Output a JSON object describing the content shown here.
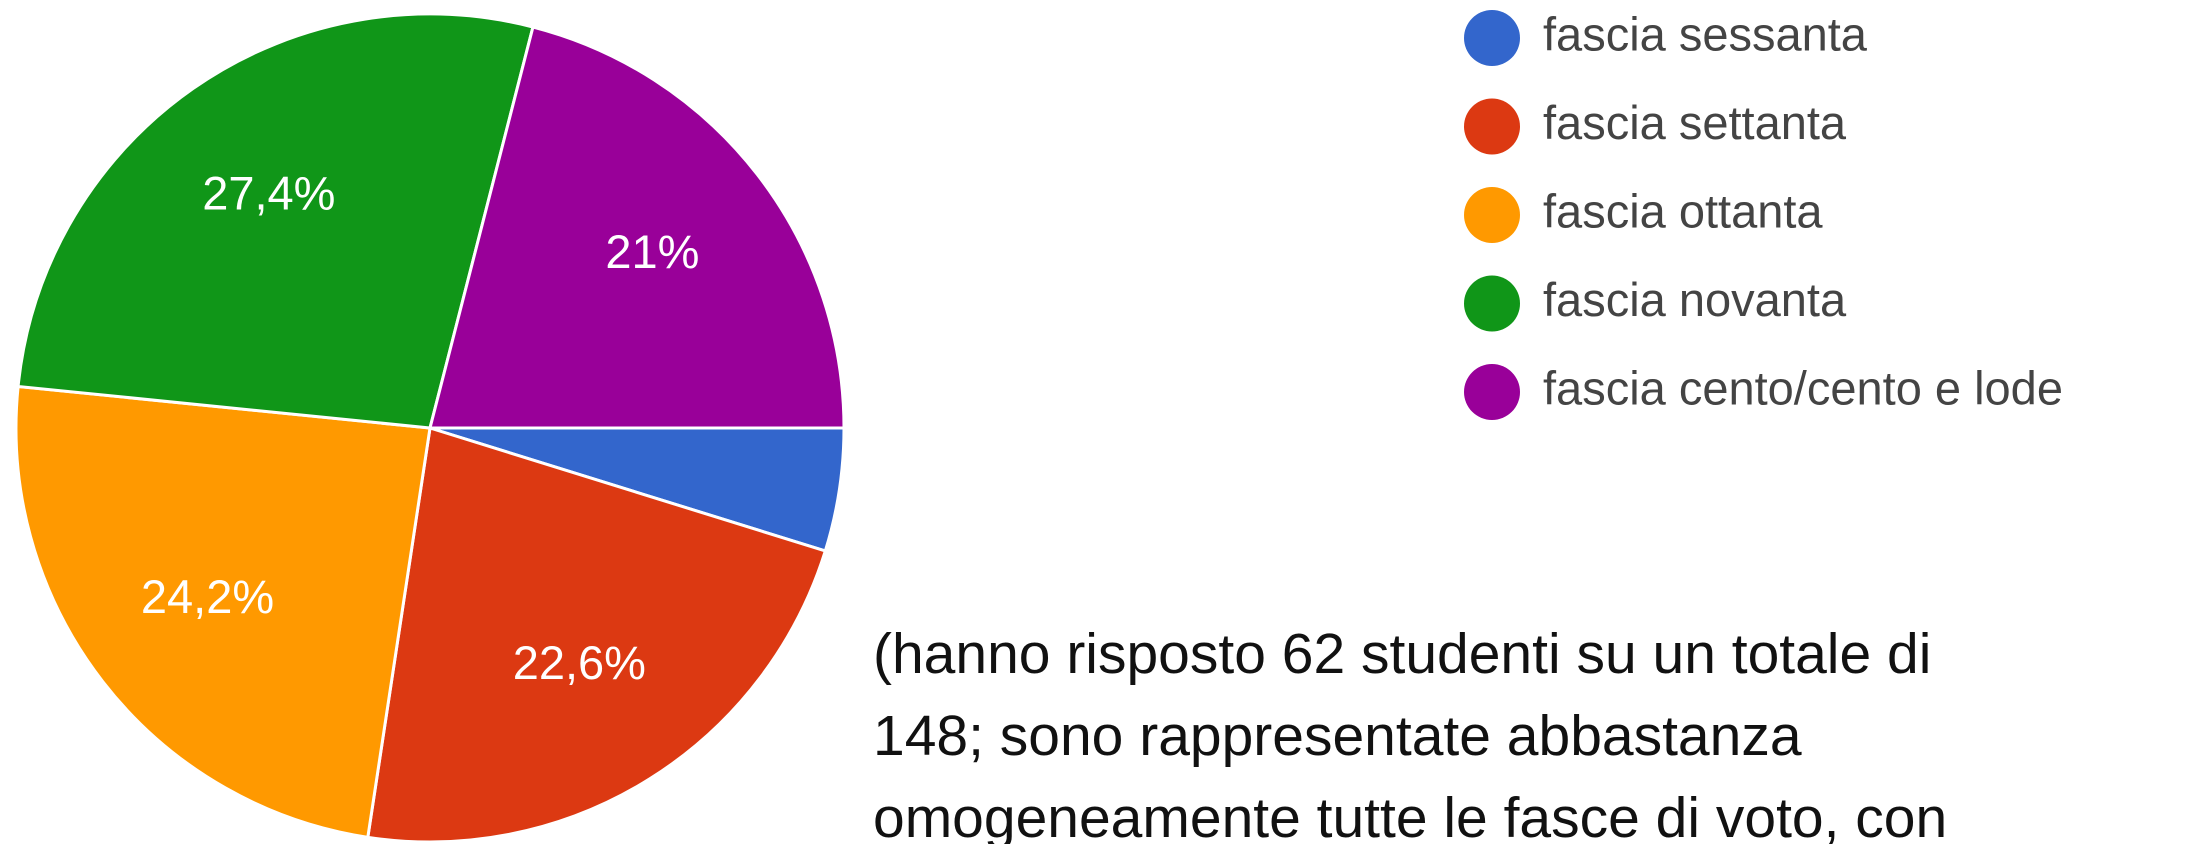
{
  "chart_data": {
    "type": "pie",
    "categories": [
      "fascia sessanta",
      "fascia settanta",
      "fascia ottanta",
      "fascia novanta",
      "fascia cento/cento e lode"
    ],
    "values": [
      4.8,
      22.6,
      24.2,
      27.4,
      21
    ],
    "value_labels": [
      null,
      "22,6%",
      "24,2%",
      "27,4%",
      "21%"
    ],
    "colors": [
      "#3366cc",
      "#dc3912",
      "#ff9900",
      "#109618",
      "#990099"
    ],
    "legend": "right",
    "annotation_lines": [
      "(hanno risposto 62 studenti su un totale di",
      "148; sono rappresentate abbastanza",
      "omogeneamente tutte le fasce di voto, con"
    ]
  }
}
